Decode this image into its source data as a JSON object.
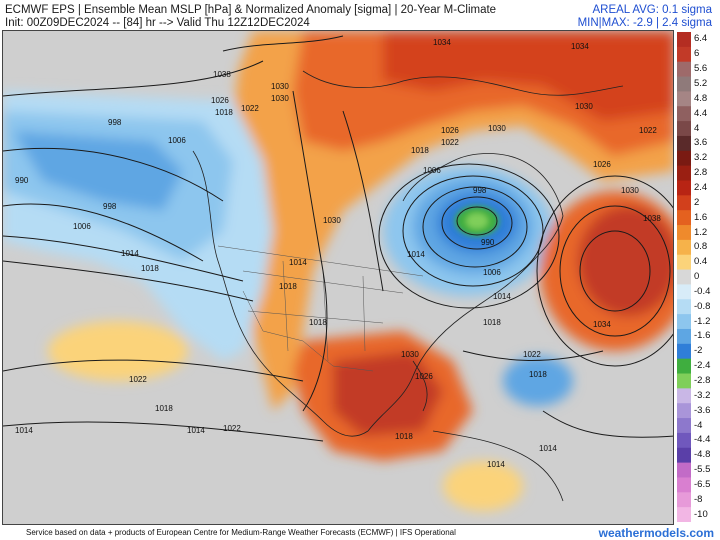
{
  "header": {
    "title": "ECMWF EPS | Ensemble Mean MSLP [hPa] & Normalized Anomaly [sigma] | 20-Year M-Climate",
    "init": "Init: 00Z09DEC2024 -- [84] hr --> Valid Thu 12Z12DEC2024",
    "areal_avg": "AREAL AVG: 0.1 sigma",
    "min_max": "MIN|MAX: -2.9 | 2.4 sigma"
  },
  "colorbar": {
    "labels": [
      "6.4",
      "6",
      "5.6",
      "5.2",
      "4.8",
      "4.4",
      "4",
      "3.6",
      "3.2",
      "2.8",
      "2.4",
      "2",
      "1.6",
      "1.2",
      "0.8",
      "0.4",
      "0",
      "-0.4",
      "-0.8",
      "-1.2",
      "-1.6",
      "-2",
      "-2.4",
      "-2.8",
      "-3.2",
      "-3.6",
      "-4",
      "-4.4",
      "-4.8",
      "-5.5",
      "-6.5",
      "-8",
      "-10"
    ],
    "colors": [
      "#b42d22",
      "#c23a28",
      "#9e6a6a",
      "#8f7a7a",
      "#a58585",
      "#8f6060",
      "#7a4848",
      "#5a2a2a",
      "#7a1a12",
      "#9a1f12",
      "#b82414",
      "#d2401c",
      "#e4611f",
      "#ef8a2c",
      "#f6b24a",
      "#fbd37a",
      "#d8d8d8",
      "#d8ecf8",
      "#b5dcf4",
      "#8dc6ee",
      "#5ea6e3",
      "#2f7ed8",
      "#3fae3f",
      "#7fcf5a",
      "#c9b7e6",
      "#a995d9",
      "#8d78cc",
      "#7058bd",
      "#5a3fa8",
      "#c26bc7",
      "#d97fd0",
      "#e79ad9",
      "#f2b6e4"
    ]
  },
  "isobar_labels": [
    "1034",
    "1034",
    "1038",
    "1030",
    "1026",
    "1022",
    "1018",
    "1030",
    "998",
    "1006",
    "990",
    "998",
    "1006",
    "1014",
    "1018",
    "1026",
    "1022",
    "1030",
    "1030",
    "1018",
    "1006",
    "998",
    "990",
    "1006",
    "1014",
    "1018",
    "1030",
    "1026",
    "1022",
    "1034",
    "1038",
    "1030",
    "1022",
    "1018",
    "1014",
    "1018",
    "1014",
    "1018",
    "1022",
    "1022",
    "1014",
    "1018",
    "1014",
    "1014",
    "1026",
    "1030",
    "1018",
    "1014"
  ],
  "footer": "Service based on data + products of European Centre for Medium-Range Weather Forecasts (ECMWF) | IFS Operational",
  "brand": "weathermodels.com"
}
